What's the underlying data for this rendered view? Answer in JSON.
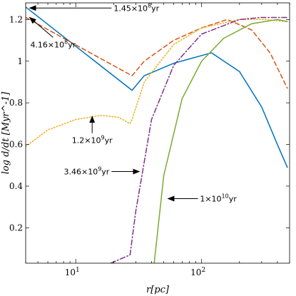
{
  "chart_data": {
    "type": "line",
    "title": "",
    "xlabel": "r[pc]",
    "ylabel": "log d/dt [Myr^-1]",
    "xscale": "log",
    "xlim": [
      4,
      500
    ],
    "ylim": [
      0.03,
      1.28
    ],
    "xticks": [
      10,
      100
    ],
    "xtick_labels": [
      "10^1",
      "10^2"
    ],
    "yticks": [
      0.2,
      0.4,
      0.6,
      0.8,
      1.0,
      1.2
    ],
    "ytick_labels": [
      "0.2",
      "0.4",
      "0.6",
      "0.8",
      "1",
      "1.2"
    ],
    "grid": false,
    "series": [
      {
        "color": "#0072BD",
        "style": "solid",
        "points": [
          [
            4,
            1.26
          ],
          [
            28,
            0.86
          ],
          [
            35,
            0.93
          ],
          [
            60,
            0.99
          ],
          [
            120,
            1.04
          ],
          [
            200,
            0.95
          ],
          [
            300,
            0.78
          ],
          [
            400,
            0.6
          ],
          [
            480,
            0.49
          ]
        ]
      },
      {
        "color": "#D95319",
        "style": "dashed",
        "points": [
          [
            4,
            1.21
          ],
          [
            28,
            0.93
          ],
          [
            35,
            1.0
          ],
          [
            60,
            1.1
          ],
          [
            100,
            1.16
          ],
          [
            160,
            1.2
          ],
          [
            250,
            1.15
          ],
          [
            350,
            1.04
          ],
          [
            480,
            0.87
          ]
        ]
      },
      {
        "color": "#EDB120",
        "style": "dotted",
        "points": [
          [
            4,
            0.59
          ],
          [
            6,
            0.67
          ],
          [
            10,
            0.72
          ],
          [
            16,
            0.74
          ],
          [
            22,
            0.73
          ],
          [
            27,
            0.7
          ],
          [
            28,
            0.72
          ],
          [
            35,
            0.9
          ],
          [
            60,
            1.08
          ],
          [
            100,
            1.16
          ],
          [
            200,
            1.2
          ],
          [
            320,
            1.2
          ],
          [
            480,
            1.19
          ]
        ]
      },
      {
        "color": "#7E2F8E",
        "style": "dashdot",
        "points": [
          [
            19,
            0.03
          ],
          [
            27,
            0.07
          ],
          [
            30,
            0.28
          ],
          [
            40,
            0.72
          ],
          [
            60,
            0.98
          ],
          [
            100,
            1.13
          ],
          [
            200,
            1.2
          ],
          [
            300,
            1.21
          ],
          [
            480,
            1.21
          ]
        ]
      },
      {
        "color": "#77AC30",
        "style": "solid",
        "points": [
          [
            42,
            0.03
          ],
          [
            50,
            0.45
          ],
          [
            70,
            0.82
          ],
          [
            100,
            1.0
          ],
          [
            150,
            1.11
          ],
          [
            250,
            1.18
          ],
          [
            400,
            1.2
          ],
          [
            480,
            1.19
          ]
        ]
      }
    ],
    "annotations": [
      {
        "text": "1.45×10^8yr",
        "arrow_to": [
          4.3,
          1.255
        ],
        "text_at": [
          20,
          1.255
        ],
        "text_anchor": "start"
      },
      {
        "text": "4.16×10^8yr",
        "arrow_to": [
          4.3,
          1.21
        ],
        "text_at": [
          6.6,
          1.08
        ],
        "text_anchor": "middle"
      },
      {
        "text": "1.2×10^9yr",
        "arrow_to": [
          13.5,
          0.735
        ],
        "text_at": [
          13.5,
          0.62
        ],
        "text_anchor": "middle"
      },
      {
        "text": "3.46×10^9yr",
        "arrow_to": [
          32,
          0.47
        ],
        "text_at": [
          18.5,
          0.47
        ],
        "text_anchor": "end"
      },
      {
        "text": "1×10^10yr",
        "arrow_to": [
          54,
          0.34
        ],
        "text_at": [
          97,
          0.34
        ],
        "text_anchor": "start"
      }
    ]
  }
}
